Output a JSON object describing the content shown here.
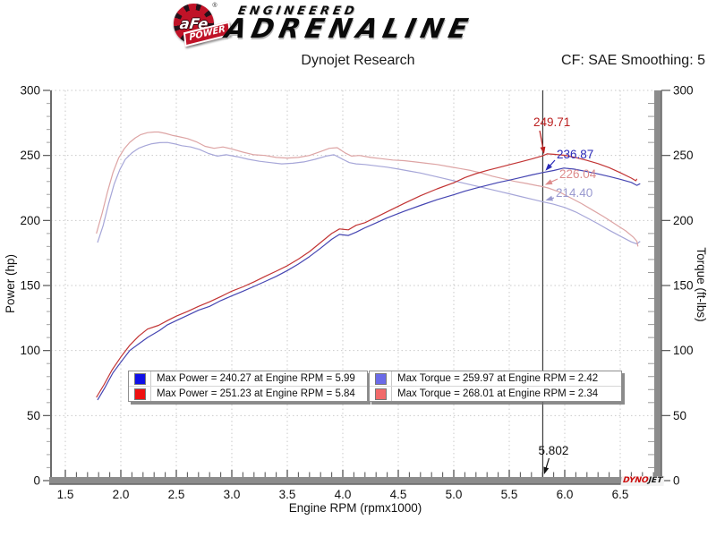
{
  "header": {
    "brand_circle": "aFe",
    "brand_reg": "®",
    "brand_banner": "POWER",
    "brand_line1": "ENGINEERED",
    "brand_line2": "ADRENALINE"
  },
  "footer_logo": {
    "part1": "DYNO",
    "part2": "JET"
  },
  "chart_data": {
    "type": "line",
    "title": "Dynojet Research",
    "smoothing_label": "CF: SAE Smoothing: 5",
    "xlabel": "Engine RPM (rpmx1000)",
    "ylabel_left": "Power (hp)",
    "ylabel_right": "Torque (ft-lbs)",
    "xlim": [
      1.5,
      6.8
    ],
    "ylim": [
      0,
      300
    ],
    "x_major_ticks": [
      "1.5",
      "2.0",
      "2.5",
      "3.0",
      "3.5",
      "4.0",
      "4.5",
      "5.0",
      "5.5",
      "6.0",
      "6.5"
    ],
    "x_minor_step": 0.1,
    "y_major_ticks": [
      "0",
      "50",
      "100",
      "150",
      "200",
      "250",
      "300"
    ],
    "y_minor_step": 10,
    "grid": "dotted-major",
    "legend_position": "bottom-inside",
    "marker_line": {
      "rpm": 5.802,
      "label": "5.802"
    },
    "annotations": [
      {
        "text": "249.71",
        "value": 249.71,
        "color": "#bb2020",
        "series": "power_afe"
      },
      {
        "text": "236.87",
        "value": 236.87,
        "color": "#2a2ab8",
        "series": "power_baseline"
      },
      {
        "text": "226.04",
        "value": 226.04,
        "color": "#dd8b8b",
        "series": "torque_afe"
      },
      {
        "text": "214.40",
        "value": 214.4,
        "color": "#9a9ad0",
        "series": "torque_baseline"
      }
    ],
    "series": [
      {
        "name": "torque_baseline",
        "unit": "ft-lbs",
        "stroke": "#a6a6d8",
        "swatch": "#6a6ae8",
        "legend": "Max Torque = 259.97 at Engine RPM = 2.42",
        "max": {
          "value": 259.97,
          "rpm": 2.42
        },
        "points": [
          [
            1.79,
            183
          ],
          [
            1.84,
            196
          ],
          [
            1.89,
            213
          ],
          [
            1.94,
            228
          ],
          [
            1.99,
            239
          ],
          [
            2.04,
            247
          ],
          [
            2.1,
            252
          ],
          [
            2.16,
            255.5
          ],
          [
            2.22,
            257.5
          ],
          [
            2.28,
            259
          ],
          [
            2.35,
            259.8
          ],
          [
            2.42,
            259.97
          ],
          [
            2.48,
            259
          ],
          [
            2.55,
            257.5
          ],
          [
            2.63,
            256.5
          ],
          [
            2.71,
            254.5
          ],
          [
            2.79,
            251.5
          ],
          [
            2.87,
            249.5
          ],
          [
            2.95,
            250.5
          ],
          [
            3.05,
            249
          ],
          [
            3.15,
            247
          ],
          [
            3.25,
            245.5
          ],
          [
            3.35,
            244.5
          ],
          [
            3.45,
            243.5
          ],
          [
            3.55,
            244
          ],
          [
            3.65,
            245
          ],
          [
            3.75,
            247
          ],
          [
            3.85,
            249.5
          ],
          [
            3.92,
            250.5
          ],
          [
            4.0,
            247
          ],
          [
            4.06,
            244.5
          ],
          [
            4.12,
            243.5
          ],
          [
            4.2,
            243
          ],
          [
            4.3,
            242
          ],
          [
            4.4,
            241
          ],
          [
            4.5,
            239.5
          ],
          [
            4.6,
            238
          ],
          [
            4.7,
            236.5
          ],
          [
            4.8,
            234.5
          ],
          [
            4.9,
            232.5
          ],
          [
            5.0,
            230.5
          ],
          [
            5.1,
            228.5
          ],
          [
            5.2,
            226.5
          ],
          [
            5.3,
            224.5
          ],
          [
            5.4,
            222.5
          ],
          [
            5.5,
            220.5
          ],
          [
            5.6,
            218.5
          ],
          [
            5.7,
            216.5
          ],
          [
            5.802,
            214.4
          ],
          [
            5.9,
            212.5
          ],
          [
            6.0,
            210
          ],
          [
            6.1,
            206.5
          ],
          [
            6.2,
            202
          ],
          [
            6.3,
            197.5
          ],
          [
            6.4,
            192.5
          ],
          [
            6.5,
            188
          ],
          [
            6.6,
            183.5
          ],
          [
            6.65,
            182
          ],
          [
            6.68,
            184
          ]
        ]
      },
      {
        "name": "torque_afe",
        "unit": "ft-lbs",
        "stroke": "#dda4a4",
        "swatch": "#f26a6a",
        "legend": "Max Torque = 268.01 at Engine RPM = 2.34",
        "max": {
          "value": 268.01,
          "rpm": 2.34
        },
        "points": [
          [
            1.78,
            190
          ],
          [
            1.83,
            205
          ],
          [
            1.88,
            222
          ],
          [
            1.93,
            237
          ],
          [
            1.98,
            248
          ],
          [
            2.03,
            255
          ],
          [
            2.08,
            260
          ],
          [
            2.13,
            263.5
          ],
          [
            2.18,
            266
          ],
          [
            2.24,
            267.5
          ],
          [
            2.3,
            268
          ],
          [
            2.34,
            268.01
          ],
          [
            2.4,
            267
          ],
          [
            2.46,
            265.5
          ],
          [
            2.52,
            264.5
          ],
          [
            2.6,
            263
          ],
          [
            2.68,
            260.5
          ],
          [
            2.76,
            257
          ],
          [
            2.84,
            255.5
          ],
          [
            2.92,
            256.5
          ],
          [
            3.0,
            255
          ],
          [
            3.1,
            252.5
          ],
          [
            3.2,
            250.5
          ],
          [
            3.3,
            250
          ],
          [
            3.4,
            248.5
          ],
          [
            3.5,
            248
          ],
          [
            3.6,
            248.5
          ],
          [
            3.7,
            250
          ],
          [
            3.8,
            253
          ],
          [
            3.88,
            255.5
          ],
          [
            3.95,
            256
          ],
          [
            4.02,
            252
          ],
          [
            4.08,
            249.5
          ],
          [
            4.15,
            250
          ],
          [
            4.25,
            248.5
          ],
          [
            4.35,
            247.5
          ],
          [
            4.45,
            246.5
          ],
          [
            4.55,
            246
          ],
          [
            4.65,
            245
          ],
          [
            4.75,
            244
          ],
          [
            4.85,
            243
          ],
          [
            4.95,
            241.5
          ],
          [
            5.05,
            240
          ],
          [
            5.15,
            238.5
          ],
          [
            5.25,
            236.5
          ],
          [
            5.35,
            234
          ],
          [
            5.45,
            232
          ],
          [
            5.55,
            230
          ],
          [
            5.65,
            228.5
          ],
          [
            5.75,
            226.8
          ],
          [
            5.802,
            226.04
          ],
          [
            5.85,
            225
          ],
          [
            5.95,
            222
          ],
          [
            6.05,
            217.5
          ],
          [
            6.15,
            213
          ],
          [
            6.25,
            208
          ],
          [
            6.35,
            203
          ],
          [
            6.45,
            197.5
          ],
          [
            6.55,
            192
          ],
          [
            6.62,
            187
          ],
          [
            6.65,
            184
          ],
          [
            6.66,
            180
          ]
        ]
      },
      {
        "name": "power_baseline",
        "unit": "hp",
        "stroke": "#4545b2",
        "swatch": "#0f0fe8",
        "legend": "Max Power = 240.27 at Engine RPM = 5.99",
        "max": {
          "value": 240.27,
          "rpm": 5.99
        },
        "points": [
          [
            1.79,
            62
          ],
          [
            1.86,
            72
          ],
          [
            1.93,
            83
          ],
          [
            2.0,
            91
          ],
          [
            2.08,
            100
          ],
          [
            2.16,
            105
          ],
          [
            2.24,
            110
          ],
          [
            2.35,
            115.5
          ],
          [
            2.42,
            119.8
          ],
          [
            2.5,
            123
          ],
          [
            2.6,
            127
          ],
          [
            2.7,
            131
          ],
          [
            2.8,
            134
          ],
          [
            2.9,
            138.4
          ],
          [
            3.0,
            142
          ],
          [
            3.1,
            145.6
          ],
          [
            3.2,
            149.3
          ],
          [
            3.3,
            153.1
          ],
          [
            3.4,
            157
          ],
          [
            3.5,
            161.5
          ],
          [
            3.6,
            166.5
          ],
          [
            3.7,
            172.2
          ],
          [
            3.8,
            178.7
          ],
          [
            3.9,
            185.5
          ],
          [
            3.97,
            189.3
          ],
          [
            4.05,
            188.5
          ],
          [
            4.12,
            191
          ],
          [
            4.2,
            194.4
          ],
          [
            4.3,
            198.1
          ],
          [
            4.4,
            202
          ],
          [
            4.55,
            207
          ],
          [
            4.7,
            211.6
          ],
          [
            4.85,
            216
          ],
          [
            5.0,
            219.8
          ],
          [
            5.1,
            222.5
          ],
          [
            5.2,
            224.9
          ],
          [
            5.3,
            227
          ],
          [
            5.4,
            229.2
          ],
          [
            5.5,
            231
          ],
          [
            5.6,
            233
          ],
          [
            5.7,
            235
          ],
          [
            5.802,
            236.87
          ],
          [
            5.9,
            238.4
          ],
          [
            5.99,
            240.27
          ],
          [
            6.08,
            239.5
          ],
          [
            6.2,
            237.6
          ],
          [
            6.3,
            235.8
          ],
          [
            6.4,
            233.8
          ],
          [
            6.5,
            231.7
          ],
          [
            6.6,
            229.3
          ],
          [
            6.65,
            227
          ],
          [
            6.68,
            228.3
          ]
        ]
      },
      {
        "name": "power_afe",
        "unit": "hp",
        "stroke": "#c23434",
        "swatch": "#ee1010",
        "legend": "Max Power = 251.23 at Engine RPM = 5.84",
        "max": {
          "value": 251.23,
          "rpm": 5.84
        },
        "points": [
          [
            1.78,
            64
          ],
          [
            1.85,
            74
          ],
          [
            1.92,
            85
          ],
          [
            2.0,
            95
          ],
          [
            2.08,
            104
          ],
          [
            2.16,
            111
          ],
          [
            2.24,
            116.5
          ],
          [
            2.34,
            119.4
          ],
          [
            2.42,
            123
          ],
          [
            2.5,
            126.5
          ],
          [
            2.6,
            130
          ],
          [
            2.7,
            134
          ],
          [
            2.8,
            137.5
          ],
          [
            2.9,
            141.5
          ],
          [
            3.0,
            145.7
          ],
          [
            3.1,
            149
          ],
          [
            3.2,
            152.8
          ],
          [
            3.3,
            157
          ],
          [
            3.4,
            161
          ],
          [
            3.5,
            165.2
          ],
          [
            3.6,
            170.3
          ],
          [
            3.7,
            176.1
          ],
          [
            3.8,
            183
          ],
          [
            3.9,
            190
          ],
          [
            3.97,
            193.5
          ],
          [
            4.05,
            192.8
          ],
          [
            4.12,
            196.3
          ],
          [
            4.2,
            198.3
          ],
          [
            4.3,
            202.5
          ],
          [
            4.4,
            206.7
          ],
          [
            4.55,
            213
          ],
          [
            4.7,
            219
          ],
          [
            4.85,
            224.3
          ],
          [
            5.0,
            229
          ],
          [
            5.1,
            233
          ],
          [
            5.2,
            236
          ],
          [
            5.3,
            238.5
          ],
          [
            5.4,
            240.6
          ],
          [
            5.5,
            242.8
          ],
          [
            5.6,
            245
          ],
          [
            5.7,
            247.2
          ],
          [
            5.802,
            249.71
          ],
          [
            5.84,
            251.23
          ],
          [
            5.9,
            250.9
          ],
          [
            6.0,
            250.1
          ],
          [
            6.1,
            248.3
          ],
          [
            6.2,
            246.2
          ],
          [
            6.3,
            243.7
          ],
          [
            6.4,
            240.6
          ],
          [
            6.5,
            236.8
          ],
          [
            6.6,
            232.6
          ],
          [
            6.64,
            230.5
          ],
          [
            6.65,
            232
          ]
        ]
      }
    ],
    "legend_boxes": [
      {
        "items": [
          "power_baseline",
          "power_afe"
        ]
      },
      {
        "items": [
          "torque_baseline",
          "torque_afe"
        ]
      }
    ]
  }
}
